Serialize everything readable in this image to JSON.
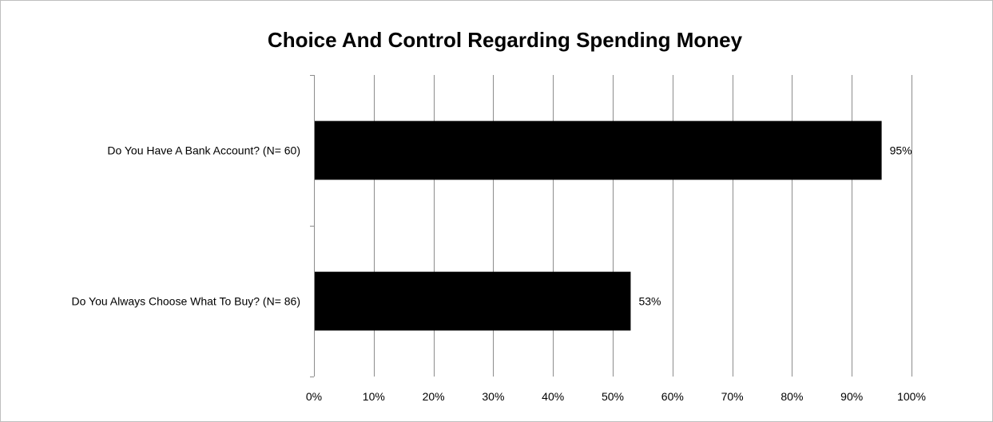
{
  "chart_data": {
    "type": "bar",
    "orientation": "horizontal",
    "title": "Choice And Control Regarding Spending Money",
    "xlabel": "",
    "ylabel": "",
    "categories": [
      "Do You Have A Bank Account? (N= 60)",
      "Do You Always Choose What To Buy? (N= 86)"
    ],
    "values": [
      95,
      53
    ],
    "data_labels": [
      "95%",
      "53%"
    ],
    "xlim": [
      0,
      100
    ],
    "x_ticks": [
      0,
      10,
      20,
      30,
      40,
      50,
      60,
      70,
      80,
      90,
      100
    ],
    "x_tick_labels": [
      "0%",
      "10%",
      "20%",
      "30%",
      "40%",
      "50%",
      "60%",
      "70%",
      "80%",
      "90%",
      "100%"
    ],
    "grid": "vertical",
    "legend": "none",
    "colors": {
      "bar": "#000000",
      "grid": "#8c8c8c",
      "axis": "#8c8c8c",
      "border": "#bfbfbf",
      "text": "#000000"
    }
  }
}
